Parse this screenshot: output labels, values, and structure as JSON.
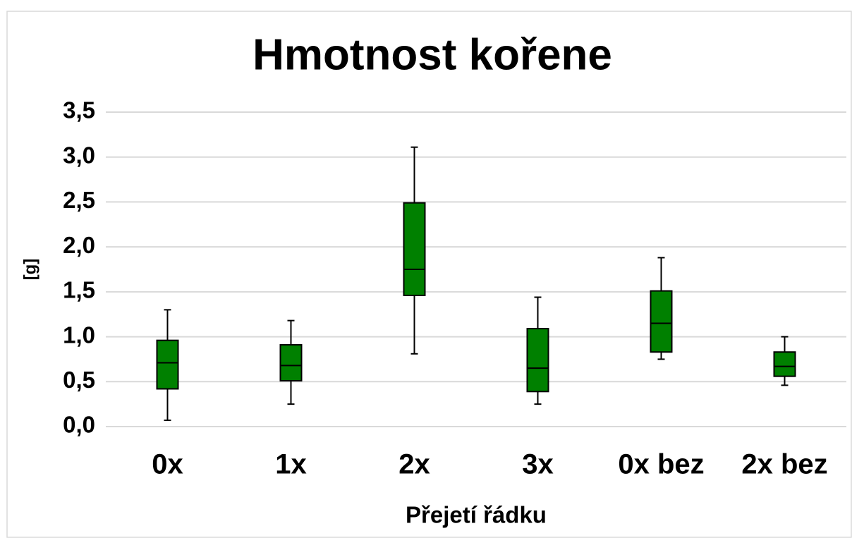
{
  "chart_data": {
    "type": "box",
    "title": "Hmotnost kořene",
    "x_label": "Přejetí řádku",
    "y_label": "[g]",
    "categories": [
      "0x",
      "1x",
      "2x",
      "3x",
      "0x bez",
      "2x bez"
    ],
    "boxes": [
      {
        "low": 0.07,
        "q1": 0.42,
        "median": 0.71,
        "q3": 0.96,
        "high": 1.3
      },
      {
        "low": 0.25,
        "q1": 0.51,
        "median": 0.68,
        "q3": 0.91,
        "high": 1.18
      },
      {
        "low": 0.81,
        "q1": 1.46,
        "median": 1.75,
        "q3": 2.49,
        "high": 3.11
      },
      {
        "low": 0.25,
        "q1": 0.39,
        "median": 0.65,
        "q3": 1.09,
        "high": 1.44
      },
      {
        "low": 0.75,
        "q1": 0.83,
        "median": 1.15,
        "q3": 1.51,
        "high": 1.88
      },
      {
        "low": 0.46,
        "q1": 0.56,
        "median": 0.67,
        "q3": 0.83,
        "high": 1.0
      }
    ],
    "color": "#008000",
    "ylim": [
      0,
      3.5
    ],
    "yticks": [
      {
        "value": 0,
        "label": "0,0"
      },
      {
        "value": 0.5,
        "label": "0,5"
      },
      {
        "value": 1,
        "label": "1,0"
      },
      {
        "value": 1.5,
        "label": "1,5"
      },
      {
        "value": 2,
        "label": "2,0"
      },
      {
        "value": 2.5,
        "label": "2,5"
      },
      {
        "value": 3,
        "label": "3,0"
      },
      {
        "value": 3.5,
        "label": "3,5"
      }
    ],
    "grid": true
  }
}
